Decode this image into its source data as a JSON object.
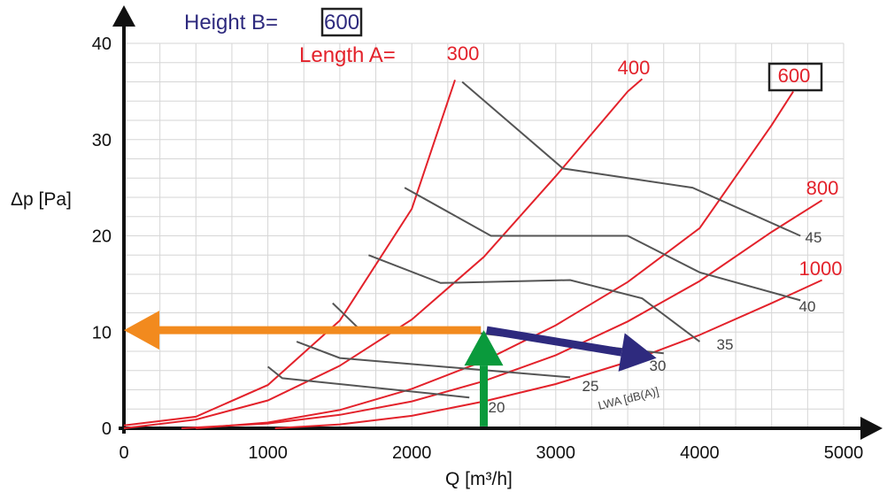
{
  "chart_data": {
    "type": "line",
    "xlabel": "Q [m³/h]",
    "ylabel": "Δp [Pa]",
    "xlim": [
      0,
      5000
    ],
    "ylim": [
      0,
      40
    ],
    "x_ticks": [
      "0",
      "1000",
      "2000",
      "3000",
      "4000",
      "5000"
    ],
    "y_ticks": [
      "0",
      "10",
      "20",
      "30",
      "40"
    ],
    "grid": true,
    "height_label": "Height B=",
    "height_value": "600",
    "length_label": "Length A=",
    "sound_axis_label": "LWA [dB(A)]",
    "series": [
      {
        "name": "300",
        "x": [
          0,
          500,
          1000,
          1500,
          2000,
          2300
        ],
        "y": [
          0.3,
          1.2,
          4.5,
          11.2,
          22.8,
          36.2
        ]
      },
      {
        "name": "400",
        "x": [
          0,
          500,
          1000,
          1500,
          2000,
          2500,
          3000,
          3500,
          3600
        ],
        "y": [
          0,
          0.9,
          2.9,
          6.5,
          11.3,
          17.8,
          26.2,
          35.0,
          36.3
        ]
      },
      {
        "name": "600",
        "x": [
          500,
          1000,
          1500,
          2000,
          2500,
          3000,
          3500,
          4000,
          4500,
          4650
        ],
        "y": [
          0,
          0.6,
          1.9,
          4.1,
          7.0,
          10.7,
          15.2,
          20.8,
          31.5,
          35.0
        ]
      },
      {
        "name": "800",
        "x": [
          400,
          1000,
          1500,
          2000,
          2500,
          3000,
          3500,
          4000,
          4500,
          4850
        ],
        "y": [
          0,
          0.5,
          1.4,
          2.8,
          4.9,
          7.6,
          11.1,
          15.3,
          20.4,
          23.7
        ]
      },
      {
        "name": "1000",
        "x": [
          1050,
          1500,
          2000,
          2500,
          3000,
          3500,
          4000,
          4500,
          4850
        ],
        "y": [
          0,
          0.4,
          1.3,
          2.8,
          4.6,
          6.9,
          9.7,
          13.0,
          15.4
        ]
      }
    ],
    "sound_lines": [
      {
        "label": "20",
        "x": [
          1000,
          1100,
          2400
        ],
        "y": [
          6.4,
          5.2,
          3.2
        ]
      },
      {
        "label": "25",
        "x": [
          1200,
          1500,
          3100
        ],
        "y": [
          9.0,
          7.3,
          5.3
        ]
      },
      {
        "label": "30",
        "x": [
          1450,
          1650,
          2450,
          3750
        ],
        "y": [
          13.0,
          10.1,
          9.9,
          7.8
        ]
      },
      {
        "label": "35",
        "x": [
          1700,
          2200,
          3100,
          3600,
          4000
        ],
        "y": [
          18.0,
          15.1,
          15.4,
          13.5,
          9.0
        ]
      },
      {
        "label": "40",
        "x": [
          1950,
          2550,
          3500,
          4000,
          4700
        ],
        "y": [
          25.0,
          20.0,
          20.0,
          16.2,
          13.3
        ]
      },
      {
        "label": "45",
        "x": [
          2350,
          3050,
          3950,
          4700
        ],
        "y": [
          36.0,
          27.0,
          25.0,
          20.0
        ]
      }
    ],
    "arrows": [
      {
        "color": "#0a9a3c",
        "from": [
          2500,
          0.2
        ],
        "to": [
          2500,
          10.2
        ]
      },
      {
        "color": "#f28a1e",
        "from": [
          2480,
          10.2
        ],
        "to": [
          0,
          10.2
        ]
      },
      {
        "color": "#2e2a7e",
        "from": [
          2520,
          10.2
        ],
        "to": [
          3700,
          7.3
        ]
      }
    ]
  }
}
